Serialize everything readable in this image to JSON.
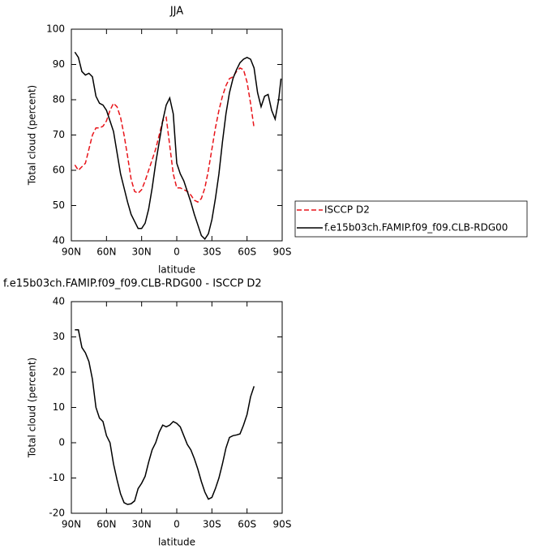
{
  "chart_data": [
    {
      "type": "line",
      "title": "JJA",
      "xlabel": "latitude",
      "ylabel": "Total cloud (percent)",
      "xlim": [
        90,
        -90
      ],
      "xticks": [
        {
          "value": 90,
          "label": "90N"
        },
        {
          "value": 60,
          "label": "60N"
        },
        {
          "value": 30,
          "label": "30N"
        },
        0,
        {
          "value": -30,
          "label": "30S"
        },
        {
          "value": -60,
          "label": "60S"
        },
        {
          "value": -90,
          "label": "90S"
        }
      ],
      "ylim": [
        40,
        100
      ],
      "yticks": [
        40,
        50,
        60,
        70,
        80,
        90,
        100
      ],
      "legend": "outside-right",
      "series": [
        {
          "name": "ISCCP D2",
          "color": "#e8141a",
          "dash": true,
          "x": [
            87,
            84,
            81,
            78,
            75,
            72,
            69,
            66,
            63,
            60,
            57,
            54,
            51,
            48,
            45,
            42,
            39,
            36,
            33,
            30,
            27,
            24,
            21,
            18,
            15,
            12,
            9,
            6,
            3,
            0,
            -3,
            -6,
            -9,
            -12,
            -15,
            -18,
            -21,
            -24,
            -27,
            -30,
            -33,
            -36,
            -39,
            -42,
            -45,
            -48,
            -51,
            -54,
            -57,
            -60,
            -63,
            -66
          ],
          "values": [
            61.5,
            60,
            61,
            62,
            66,
            70,
            72,
            72,
            72.5,
            74,
            77,
            79,
            78,
            75,
            70,
            64,
            57.5,
            54,
            53.5,
            54.5,
            57,
            60,
            63,
            66,
            70,
            74,
            75,
            67,
            59,
            55,
            55,
            54.5,
            54,
            53,
            51.5,
            51,
            52,
            55,
            60,
            66,
            72,
            77,
            81,
            84,
            86,
            86.5,
            88,
            89,
            88.5,
            85,
            79,
            72
          ]
        },
        {
          "name": "f.e15b03ch.FAMIP.f09_f09.CLB-RDG00",
          "color": "#000000",
          "dash": false,
          "x": [
            87,
            84,
            81,
            78,
            75,
            72,
            69,
            66,
            63,
            60,
            57,
            54,
            51,
            48,
            45,
            42,
            39,
            36,
            33,
            30,
            27,
            24,
            21,
            18,
            15,
            12,
            9,
            6,
            3,
            0,
            -3,
            -6,
            -9,
            -12,
            -15,
            -18,
            -21,
            -24,
            -27,
            -30,
            -33,
            -36,
            -39,
            -42,
            -45,
            -48,
            -51,
            -54,
            -57,
            -60,
            -63,
            -66,
            -69,
            -72,
            -75,
            -78,
            -81,
            -84,
            -87,
            -89
          ],
          "values": [
            93.5,
            92,
            88,
            87,
            87.5,
            86.5,
            81,
            79,
            78.5,
            77,
            74,
            71,
            65,
            59,
            55,
            51,
            47.5,
            45.5,
            43.5,
            43.5,
            45,
            49,
            55,
            62,
            68,
            74,
            78.5,
            80.5,
            76,
            62,
            59,
            57,
            54,
            51,
            47.5,
            44.5,
            41.5,
            40.5,
            42,
            46,
            52,
            59,
            68,
            76,
            82,
            86,
            88.5,
            90.5,
            91.5,
            92,
            91.5,
            89,
            82,
            78,
            81,
            81.5,
            77,
            74.5,
            80,
            86
          ]
        }
      ]
    },
    {
      "type": "line",
      "title": "f.e15b03ch.FAMIP.f09_f09.CLB-RDG00 - ISCCP D2",
      "xlabel": "latitude",
      "ylabel": "Total cloud (percent)",
      "xlim": [
        90,
        -90
      ],
      "xticks": [
        {
          "value": 90,
          "label": "90N"
        },
        {
          "value": 60,
          "label": "60N"
        },
        {
          "value": 30,
          "label": "30N"
        },
        0,
        {
          "value": -30,
          "label": "30S"
        },
        {
          "value": -60,
          "label": "60S"
        },
        {
          "value": -90,
          "label": "90S"
        }
      ],
      "ylim": [
        -20,
        40
      ],
      "yticks": [
        -20,
        -10,
        0,
        10,
        20,
        30,
        40
      ],
      "series": [
        {
          "color": "#000000",
          "dash": false,
          "x": [
            87,
            84,
            81,
            78,
            75,
            72,
            69,
            66,
            63,
            60,
            57,
            54,
            51,
            48,
            45,
            42,
            39,
            36,
            33,
            30,
            27,
            24,
            21,
            18,
            15,
            12,
            9,
            6,
            3,
            0,
            -3,
            -6,
            -9,
            -12,
            -15,
            -18,
            -21,
            -24,
            -27,
            -30,
            -33,
            -36,
            -39,
            -42,
            -45,
            -48,
            -51,
            -54,
            -57,
            -60,
            -63,
            -66
          ],
          "values": [
            32,
            32,
            27,
            25.5,
            23,
            18,
            10,
            7,
            6,
            2,
            0,
            -6,
            -10.5,
            -14.5,
            -17,
            -17.5,
            -17.3,
            -16.5,
            -13,
            -11.5,
            -9.5,
            -5.5,
            -2,
            0,
            3,
            5,
            4.5,
            5,
            6,
            5.5,
            4.5,
            2,
            -0.5,
            -2,
            -4.5,
            -7.5,
            -11,
            -14,
            -16,
            -15.5,
            -13,
            -10,
            -6,
            -1.5,
            1.5,
            2,
            2.2,
            2.5,
            5,
            8,
            13,
            16
          ]
        }
      ]
    }
  ]
}
